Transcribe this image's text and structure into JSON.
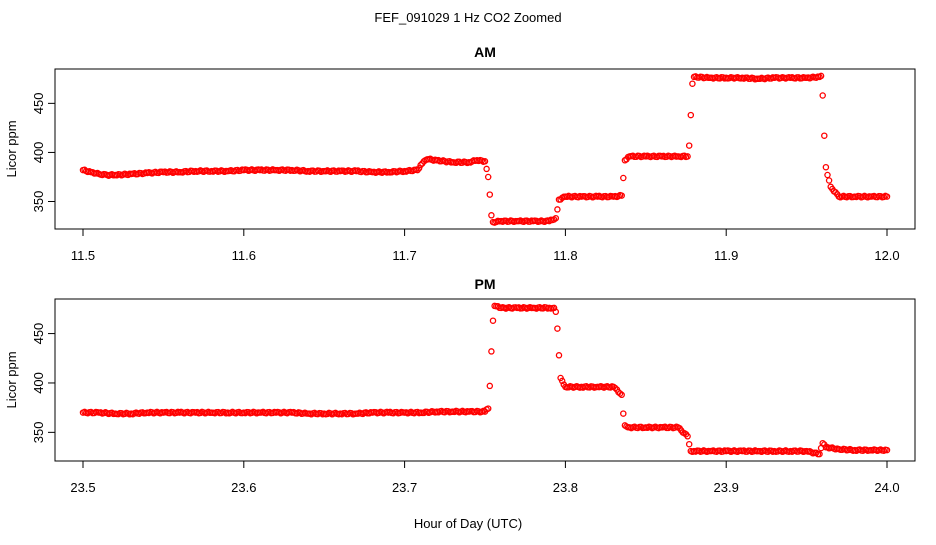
{
  "figure": {
    "title": "FEF_091029  1 Hz CO2 Zoomed",
    "xlabel": "Hour of Day (UTC)"
  },
  "chart_data": [
    {
      "type": "scatter",
      "title": "AM",
      "ylabel": "Licor ppm",
      "xlim": [
        11.5,
        12.0
      ],
      "ylim": [
        322,
        485
      ],
      "xticks": [
        11.5,
        11.6,
        11.7,
        11.8,
        11.9,
        12.0
      ],
      "xtick_labels": [
        "11.5",
        "11.6",
        "11.7",
        "11.8",
        "11.9",
        "12.0"
      ],
      "yticks": [
        350,
        400,
        450
      ],
      "ytick_labels": [
        "350",
        "400",
        "450"
      ],
      "marker_color": "#ff0000",
      "grid": false,
      "series": [
        {
          "x": [
            11.5,
            11.505,
            11.51,
            11.515,
            11.52,
            11.53,
            11.54,
            11.55,
            11.56,
            11.57,
            11.58,
            11.59,
            11.6,
            11.61,
            11.62,
            11.63,
            11.64,
            11.65,
            11.66,
            11.67,
            11.68,
            11.69,
            11.7,
            11.708,
            11.712,
            11.715,
            11.72,
            11.73,
            11.74,
            11.745,
            11.75,
            11.752,
            11.753,
            11.754,
            11.755,
            11.76,
            11.77,
            11.78,
            11.79,
            11.794,
            11.795,
            11.796,
            11.8,
            11.81,
            11.82,
            11.83,
            11.835,
            11.836,
            11.837,
            11.84,
            11.85,
            11.86,
            11.87,
            11.876,
            11.877,
            11.878,
            11.879,
            11.88,
            11.89,
            11.9,
            11.91,
            11.92,
            11.93,
            11.94,
            11.95,
            11.958,
            11.959,
            11.96,
            11.961,
            11.962,
            11.963,
            11.965,
            11.97,
            11.98,
            11.99,
            12.0
          ],
          "y": [
            382,
            380,
            378,
            377,
            377,
            378,
            379,
            380,
            380,
            381,
            381,
            381,
            382,
            382,
            382,
            382,
            381,
            381,
            381,
            381,
            380,
            380,
            381,
            382,
            391,
            393,
            392,
            390,
            390,
            392,
            391,
            375,
            357,
            336,
            329,
            330,
            330,
            330,
            330,
            333,
            342,
            352,
            355,
            355,
            355,
            355,
            356,
            374,
            392,
            396,
            396,
            396,
            396,
            396,
            407,
            438,
            470,
            477,
            476,
            476,
            476,
            475,
            476,
            476,
            476,
            477,
            478,
            458,
            417,
            385,
            377,
            365,
            355,
            355,
            355,
            355
          ]
        }
      ]
    },
    {
      "type": "scatter",
      "title": "PM",
      "ylabel": "Licor ppm",
      "xlim": [
        23.5,
        24.0
      ],
      "ylim": [
        321,
        485
      ],
      "xticks": [
        23.5,
        23.6,
        23.7,
        23.8,
        23.9,
        24.0
      ],
      "xtick_labels": [
        "23.5",
        "23.6",
        "23.7",
        "23.8",
        "23.9",
        "24.0"
      ],
      "yticks": [
        350,
        400,
        450
      ],
      "ytick_labels": [
        "350",
        "400",
        "450"
      ],
      "marker_color": "#ff0000",
      "grid": false,
      "series": [
        {
          "x": [
            23.5,
            23.51,
            23.52,
            23.53,
            23.54,
            23.55,
            23.56,
            23.57,
            23.58,
            23.59,
            23.6,
            23.61,
            23.62,
            23.63,
            23.64,
            23.65,
            23.66,
            23.67,
            23.68,
            23.69,
            23.7,
            23.71,
            23.72,
            23.73,
            23.74,
            23.75,
            23.752,
            23.753,
            23.754,
            23.755,
            23.756,
            23.76,
            23.77,
            23.78,
            23.79,
            23.793,
            23.794,
            23.795,
            23.796,
            23.797,
            23.8,
            23.81,
            23.82,
            23.83,
            23.835,
            23.836,
            23.837,
            23.84,
            23.85,
            23.86,
            23.87,
            23.876,
            23.877,
            23.878,
            23.88,
            23.89,
            23.9,
            23.91,
            23.92,
            23.93,
            23.94,
            23.95,
            23.958,
            23.96,
            23.962,
            23.97,
            23.98,
            23.99,
            24.0
          ],
          "y": [
            370,
            370,
            369,
            369,
            370,
            370,
            370,
            370,
            370,
            370,
            370,
            370,
            370,
            370,
            369,
            369,
            369,
            369,
            370,
            370,
            370,
            370,
            371,
            371,
            371,
            371,
            374,
            397,
            432,
            463,
            478,
            476,
            476,
            476,
            476,
            476,
            472,
            455,
            428,
            405,
            396,
            396,
            396,
            396,
            388,
            369,
            357,
            355,
            355,
            355,
            355,
            346,
            338,
            331,
            331,
            331,
            331,
            331,
            331,
            331,
            331,
            331,
            328,
            339,
            335,
            333,
            332,
            332,
            332
          ]
        }
      ]
    }
  ]
}
